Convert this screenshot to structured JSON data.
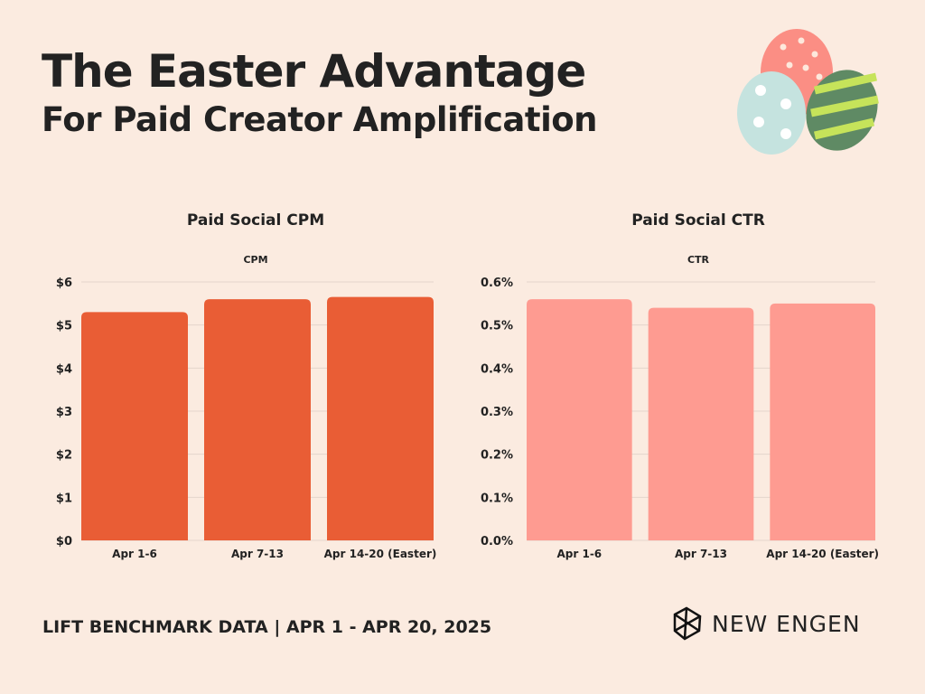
{
  "header": {
    "title": "The Easter Advantage",
    "subtitle": "For Paid Creator Amplification"
  },
  "footer": {
    "text": "LIFT BENCHMARK DATA | APR 1 - APR 20, 2025"
  },
  "logo": {
    "text": "NEW ENGEN"
  },
  "decoration": {
    "icon": "easter-eggs-icon",
    "colors": [
      "#fb8e84",
      "#c5e3df",
      "#7bb35a"
    ]
  },
  "chart_data": [
    {
      "type": "bar",
      "title": "Paid Social CPM",
      "series_label": "CPM",
      "categories": [
        "Apr 1-6",
        "Apr 7-13",
        "Apr 14-20 (Easter)"
      ],
      "values": [
        5.3,
        5.6,
        5.65
      ],
      "ylim": [
        0,
        6
      ],
      "yticks": [
        "$0",
        "$1",
        "$2",
        "$3",
        "$4",
        "$5",
        "$6"
      ],
      "grid": true,
      "color": "#e95d35"
    },
    {
      "type": "bar",
      "title": "Paid Social CTR",
      "series_label": "CTR",
      "categories": [
        "Apr 1-6",
        "Apr 7-13",
        "Apr 14-20 (Easter)"
      ],
      "values": [
        0.56,
        0.54,
        0.55
      ],
      "ylim": [
        0,
        0.6
      ],
      "yticks": [
        "0.0%",
        "0.1%",
        "0.2%",
        "0.3%",
        "0.4%",
        "0.5%",
        "0.6%"
      ],
      "grid": true,
      "color": "#fe9b91"
    }
  ]
}
